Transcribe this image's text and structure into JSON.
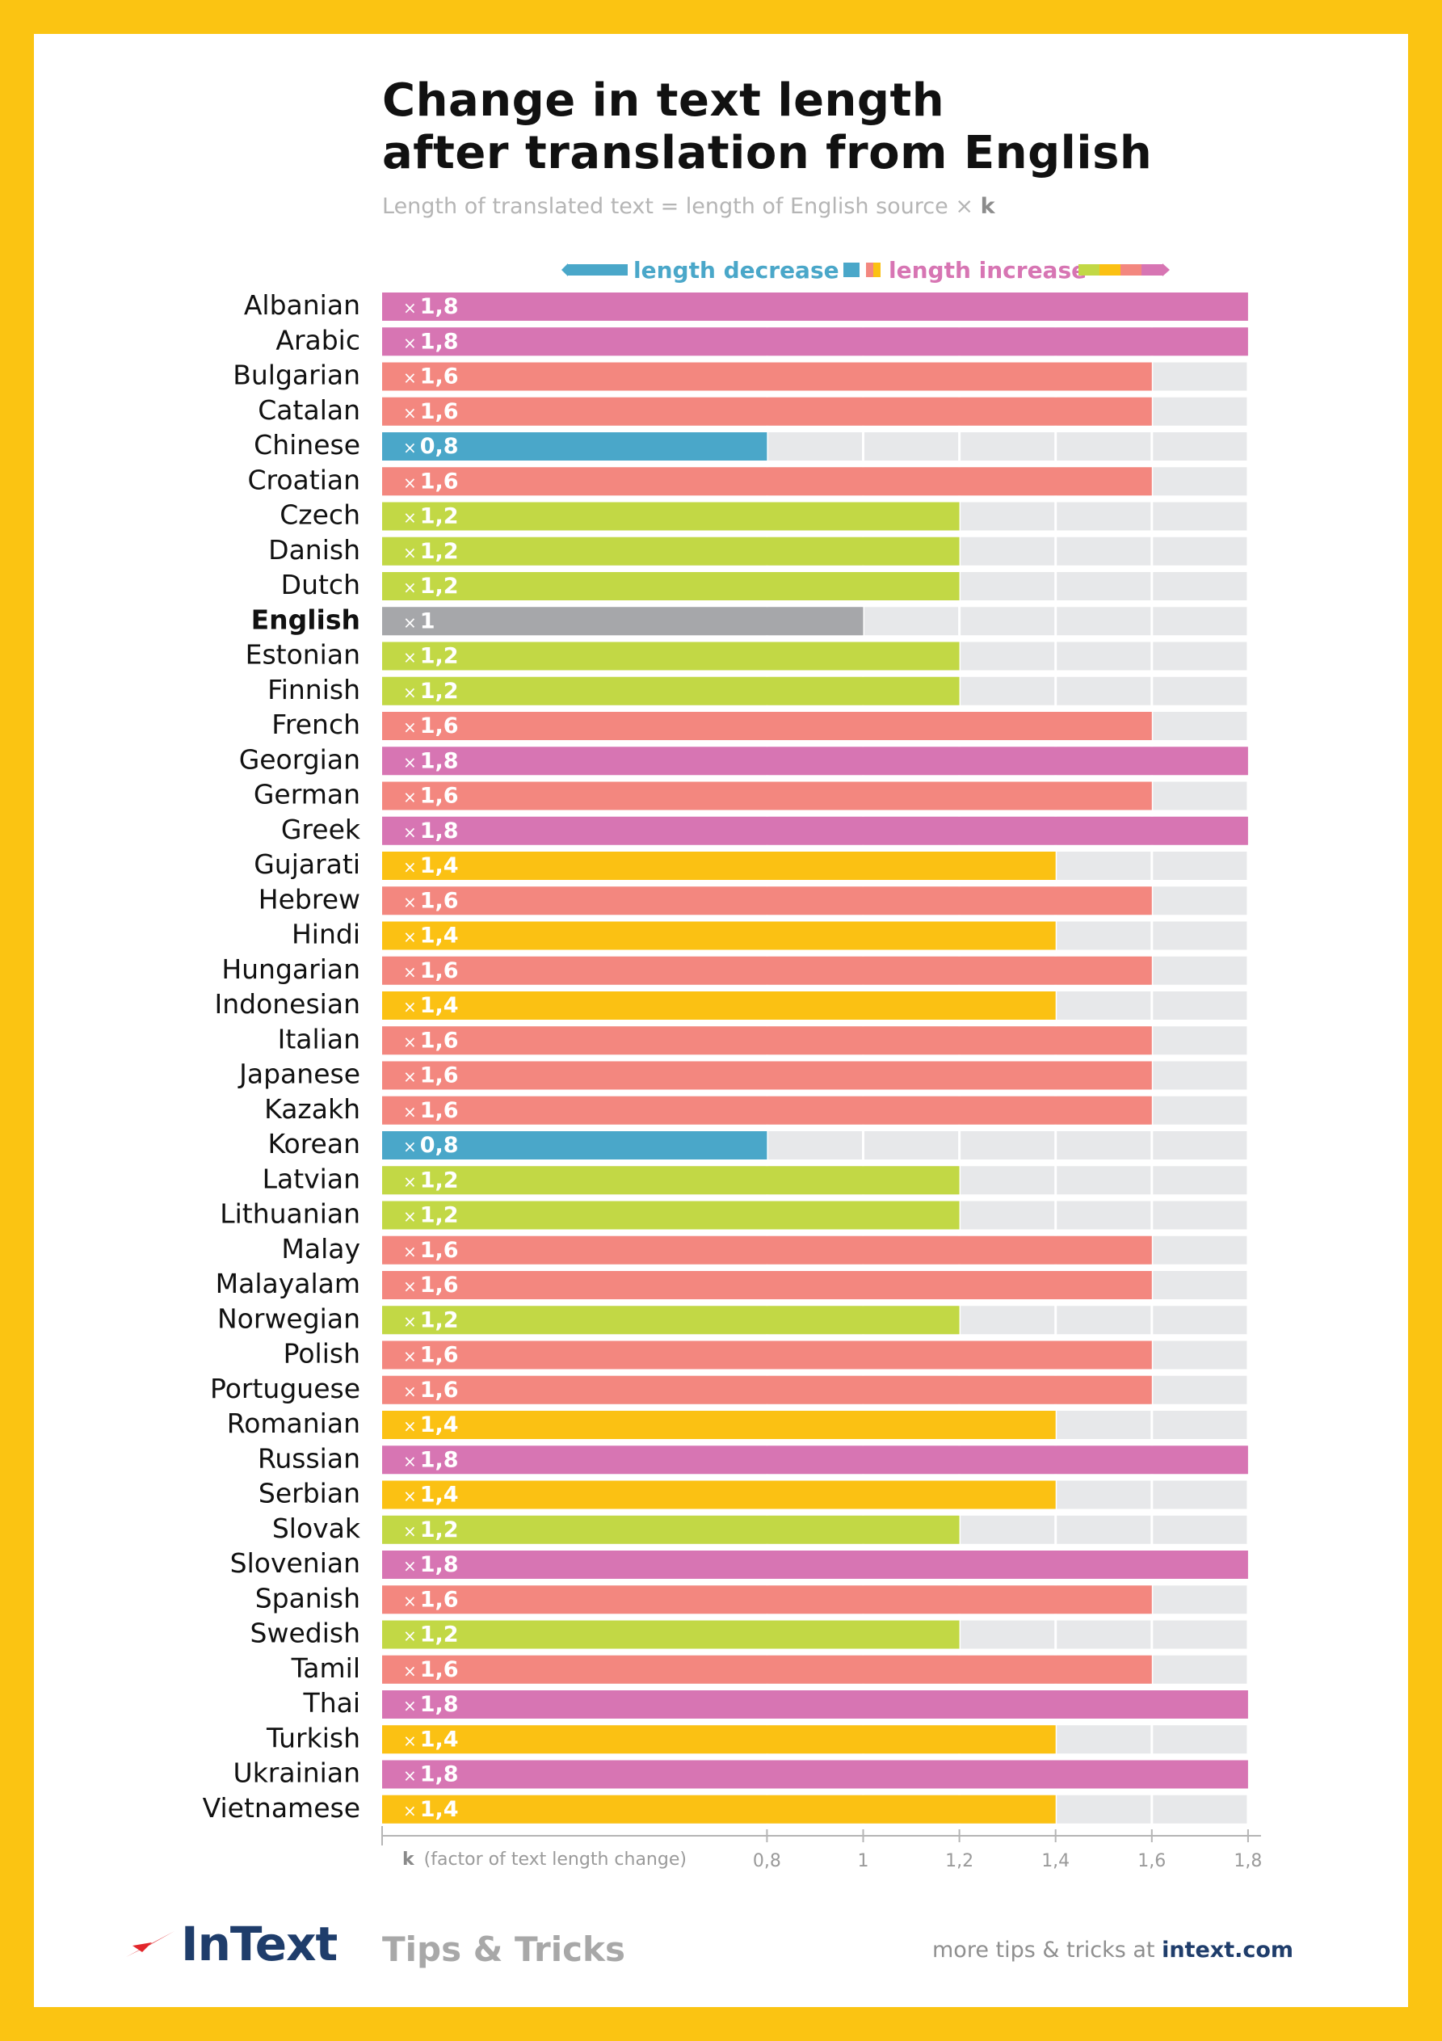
{
  "title": {
    "line1": "Change in text length",
    "line2": "after translation from English"
  },
  "subtitle": {
    "text": "Length of translated text = length of English source",
    "times": "×",
    "k": "k"
  },
  "legend": {
    "decrease": "length decrease",
    "increase": "length increase"
  },
  "colors": {
    "frame": "#fbc412",
    "decrease": "#4aa7c9",
    "baseline": "#a6a7aa",
    "x1_2": "#c2d845",
    "x1_4": "#fbc113",
    "x1_6": "#f3877f",
    "x1_8": "#d775b3",
    "track": "#e7e8ea",
    "brand": "#1f3d6b",
    "brand_accent": "#e2262b"
  },
  "chart_data": {
    "type": "bar",
    "orientation": "horizontal",
    "xlabel_k": "k",
    "xlabel": "(factor of text length change)",
    "xticks": [
      "0,8",
      "1",
      "1,2",
      "1,4",
      "1,6",
      "1,8"
    ],
    "xtick_values": [
      0.8,
      1.0,
      1.2,
      1.4,
      1.6,
      1.8
    ],
    "xlim": [
      0,
      1.8
    ],
    "value_prefix": "×",
    "highlight": "English",
    "categories": [
      "Albanian",
      "Arabic",
      "Bulgarian",
      "Catalan",
      "Chinese",
      "Croatian",
      "Czech",
      "Danish",
      "Dutch",
      "English",
      "Estonian",
      "Finnish",
      "French",
      "Georgian",
      "German",
      "Greek",
      "Gujarati",
      "Hebrew",
      "Hindi",
      "Hungarian",
      "Indonesian",
      "Italian",
      "Japanese",
      "Kazakh",
      "Korean",
      "Latvian",
      "Lithuanian",
      "Malay",
      "Malayalam",
      "Norwegian",
      "Polish",
      "Portuguese",
      "Romanian",
      "Russian",
      "Serbian",
      "Slovak",
      "Slovenian",
      "Spanish",
      "Swedish",
      "Tamil",
      "Thai",
      "Turkish",
      "Ukrainian",
      "Vietnamese"
    ],
    "values": [
      1.8,
      1.8,
      1.6,
      1.6,
      0.8,
      1.6,
      1.2,
      1.2,
      1.2,
      1.0,
      1.2,
      1.2,
      1.6,
      1.8,
      1.6,
      1.8,
      1.4,
      1.6,
      1.4,
      1.6,
      1.4,
      1.6,
      1.6,
      1.6,
      0.8,
      1.2,
      1.2,
      1.6,
      1.6,
      1.2,
      1.6,
      1.6,
      1.4,
      1.8,
      1.4,
      1.2,
      1.8,
      1.6,
      1.2,
      1.6,
      1.8,
      1.4,
      1.8,
      1.4
    ],
    "value_labels": [
      "1,8",
      "1,8",
      "1,6",
      "1,6",
      "0,8",
      "1,6",
      "1,2",
      "1,2",
      "1,2",
      "1",
      "1,2",
      "1,2",
      "1,6",
      "1,8",
      "1,6",
      "1,8",
      "1,4",
      "1,6",
      "1,4",
      "1,6",
      "1,4",
      "1,6",
      "1,6",
      "1,6",
      "0,8",
      "1,2",
      "1,2",
      "1,6",
      "1,6",
      "1,2",
      "1,6",
      "1,6",
      "1,4",
      "1,8",
      "1,4",
      "1,2",
      "1,8",
      "1,6",
      "1,2",
      "1,6",
      "1,8",
      "1,4",
      "1,8",
      "1,4"
    ]
  },
  "footer": {
    "brand": "InText",
    "tagline": "Tips & Tricks",
    "more_text": "more tips & tricks at",
    "more_link": "intext.com"
  }
}
